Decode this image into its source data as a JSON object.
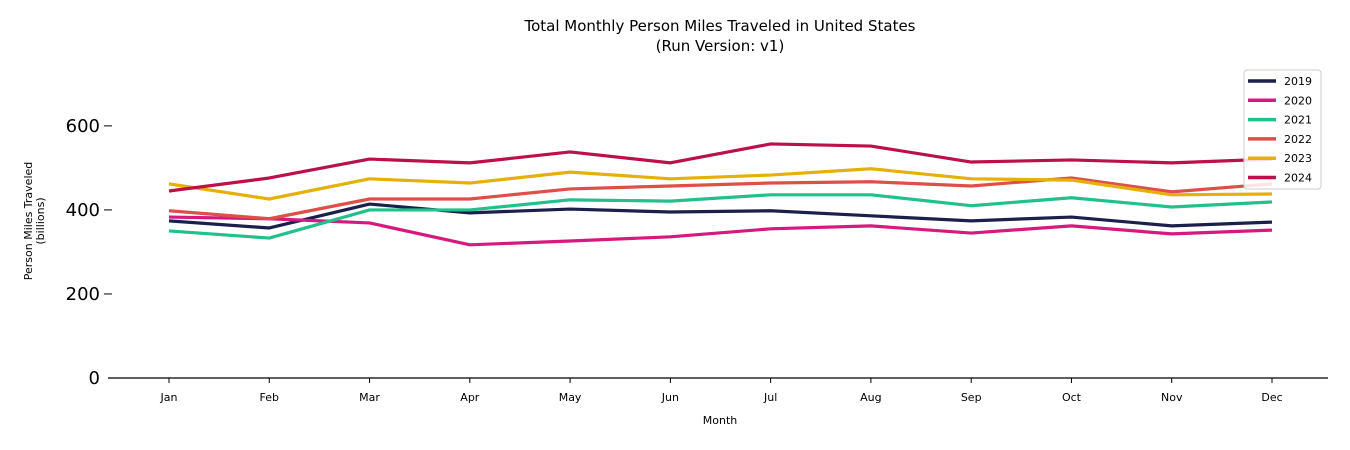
{
  "chart_data": {
    "type": "line",
    "title": "Total Monthly Person Miles Traveled in United States",
    "subtitle": "(Run Version: v1)",
    "xlabel": "Month",
    "ylabel": "Person Miles Traveled\n(billions)",
    "categories": [
      "Jan",
      "Feb",
      "Mar",
      "Apr",
      "May",
      "Jun",
      "Jul",
      "Aug",
      "Sep",
      "Oct",
      "Nov",
      "Dec"
    ],
    "yticks": [
      0,
      200,
      400,
      600
    ],
    "ylim": [
      0,
      733
    ],
    "grid": false,
    "legend_position": "top-right",
    "series": [
      {
        "name": "2019",
        "color": "#1b1f4b",
        "values": [
          374,
          357,
          414,
          393,
          402,
          395,
          398,
          386,
          374,
          383,
          362,
          371
        ]
      },
      {
        "name": "2020",
        "color": "#d6197f",
        "values": [
          383,
          379,
          369,
          317,
          326,
          336,
          355,
          362,
          345,
          362,
          343,
          352
        ]
      },
      {
        "name": "2021",
        "color": "#22c08c",
        "values": [
          350,
          333,
          400,
          400,
          424,
          421,
          436,
          436,
          410,
          429,
          407,
          419
        ]
      },
      {
        "name": "2022",
        "color": "#dd5048",
        "values": [
          398,
          379,
          426,
          426,
          450,
          457,
          464,
          467,
          457,
          476,
          443,
          462
        ]
      },
      {
        "name": "2023",
        "color": "#e6b00a",
        "values": [
          462,
          426,
          474,
          464,
          490,
          474,
          483,
          498,
          474,
          471,
          436,
          438
        ]
      },
      {
        "name": "2024",
        "color": "#bb1148",
        "values": [
          445,
          476,
          521,
          512,
          538,
          512,
          557,
          552,
          514,
          519,
          512,
          521
        ]
      }
    ]
  }
}
